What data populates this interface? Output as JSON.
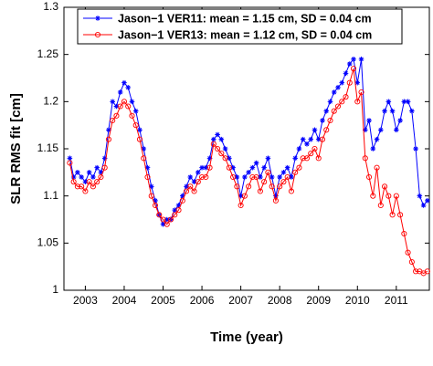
{
  "chart_data": {
    "type": "line",
    "xlabel": "Time (year)",
    "ylabel": "SLR RMS fit [cm]",
    "xlim": [
      2002.45,
      2011.85
    ],
    "xticks": [
      2003,
      2004,
      2005,
      2006,
      2007,
      2008,
      2009,
      2010,
      2011
    ],
    "ylim": [
      1,
      1.3
    ],
    "yticks": [
      1,
      1.05,
      1.1,
      1.15,
      1.2,
      1.25,
      1.3
    ],
    "grid": false,
    "legend": "top",
    "x": [
      2002.6,
      2002.7,
      2002.8,
      2002.9,
      2003.0,
      2003.1,
      2003.2,
      2003.3,
      2003.4,
      2003.5,
      2003.6,
      2003.7,
      2003.8,
      2003.9,
      2004.0,
      2004.1,
      2004.2,
      2004.3,
      2004.4,
      2004.5,
      2004.6,
      2004.7,
      2004.8,
      2004.9,
      2005.0,
      2005.1,
      2005.2,
      2005.3,
      2005.4,
      2005.5,
      2005.6,
      2005.7,
      2005.8,
      2005.9,
      2006.0,
      2006.1,
      2006.2,
      2006.3,
      2006.4,
      2006.5,
      2006.6,
      2006.7,
      2006.8,
      2006.9,
      2007.0,
      2007.1,
      2007.2,
      2007.3,
      2007.4,
      2007.5,
      2007.6,
      2007.7,
      2007.8,
      2007.9,
      2008.0,
      2008.1,
      2008.2,
      2008.3,
      2008.4,
      2008.5,
      2008.6,
      2008.7,
      2008.8,
      2008.9,
      2009.0,
      2009.1,
      2009.2,
      2009.3,
      2009.4,
      2009.5,
      2009.6,
      2009.7,
      2009.8,
      2009.9,
      2010.0,
      2010.1,
      2010.2,
      2010.3,
      2010.4,
      2010.5,
      2010.6,
      2010.7,
      2010.8,
      2010.9,
      2011.0,
      2011.1,
      2011.2,
      2011.3,
      2011.4,
      2011.5,
      2011.6,
      2011.7,
      2011.8
    ],
    "series": [
      {
        "name": "Jason−1 VER11: mean = 1.15 cm, SD = 0.04 cm",
        "color": "#0000ff",
        "marker": "star",
        "values": [
          1.14,
          1.12,
          1.125,
          1.12,
          1.115,
          1.125,
          1.12,
          1.13,
          1.125,
          1.14,
          1.17,
          1.2,
          1.195,
          1.21,
          1.22,
          1.215,
          1.2,
          1.19,
          1.17,
          1.15,
          1.13,
          1.11,
          1.095,
          1.08,
          1.07,
          1.075,
          1.075,
          1.085,
          1.09,
          1.1,
          1.11,
          1.12,
          1.115,
          1.125,
          1.13,
          1.13,
          1.14,
          1.16,
          1.165,
          1.16,
          1.15,
          1.14,
          1.13,
          1.12,
          1.1,
          1.12,
          1.125,
          1.13,
          1.135,
          1.12,
          1.13,
          1.14,
          1.12,
          1.1,
          1.12,
          1.125,
          1.13,
          1.12,
          1.14,
          1.15,
          1.16,
          1.155,
          1.16,
          1.17,
          1.16,
          1.18,
          1.19,
          1.2,
          1.21,
          1.215,
          1.22,
          1.23,
          1.24,
          1.245,
          1.22,
          1.245,
          1.17,
          1.18,
          1.15,
          1.16,
          1.17,
          1.19,
          1.2,
          1.19,
          1.17,
          1.18,
          1.2,
          1.2,
          1.19,
          1.15,
          1.1,
          1.09,
          1.095
        ]
      },
      {
        "name": "Jason−1 VER13: mean = 1.12 cm, SD = 0.04 cm",
        "color": "#ff0000",
        "marker": "circle",
        "values": [
          1.135,
          1.115,
          1.11,
          1.11,
          1.105,
          1.115,
          1.11,
          1.115,
          1.12,
          1.13,
          1.16,
          1.18,
          1.185,
          1.195,
          1.2,
          1.195,
          1.185,
          1.175,
          1.16,
          1.14,
          1.12,
          1.1,
          1.09,
          1.08,
          1.075,
          1.07,
          1.075,
          1.08,
          1.085,
          1.095,
          1.105,
          1.11,
          1.105,
          1.115,
          1.12,
          1.12,
          1.13,
          1.155,
          1.15,
          1.145,
          1.14,
          1.13,
          1.12,
          1.11,
          1.09,
          1.1,
          1.11,
          1.12,
          1.12,
          1.105,
          1.115,
          1.125,
          1.11,
          1.095,
          1.11,
          1.115,
          1.12,
          1.105,
          1.125,
          1.13,
          1.14,
          1.14,
          1.145,
          1.15,
          1.14,
          1.16,
          1.17,
          1.18,
          1.19,
          1.195,
          1.2,
          1.205,
          1.22,
          1.235,
          1.2,
          1.21,
          1.14,
          1.12,
          1.1,
          1.13,
          1.09,
          1.11,
          1.1,
          1.08,
          1.1,
          1.08,
          1.06,
          1.04,
          1.03,
          1.02,
          1.02,
          1.018,
          1.02
        ]
      }
    ]
  }
}
